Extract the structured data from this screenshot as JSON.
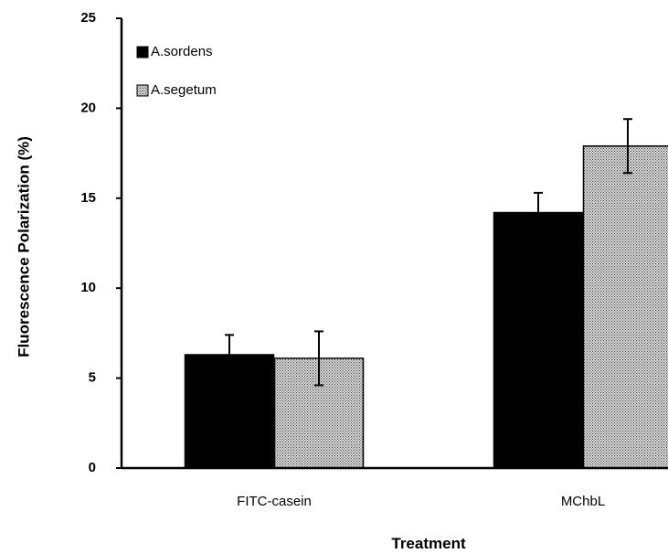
{
  "chart_data": {
    "type": "bar",
    "title": "",
    "xlabel": "Treatment",
    "ylabel": "Fluorescence Polarization (%)",
    "categories": [
      "FITC-casein",
      "MChbL"
    ],
    "ylim": [
      0,
      25
    ],
    "yticks": [
      0,
      5,
      10,
      15,
      20,
      25
    ],
    "grid": false,
    "legend_position": "top-left",
    "series": [
      {
        "name": "A.sordens",
        "values": [
          6.3,
          14.2
        ],
        "errors": [
          1.1,
          1.1
        ],
        "fill": "solid",
        "color": "#000000"
      },
      {
        "name": "A.segetum",
        "values": [
          6.1,
          17.9
        ],
        "errors": [
          1.5,
          1.5
        ],
        "fill": "crosshatch",
        "color": "#8c8c8c"
      }
    ]
  }
}
